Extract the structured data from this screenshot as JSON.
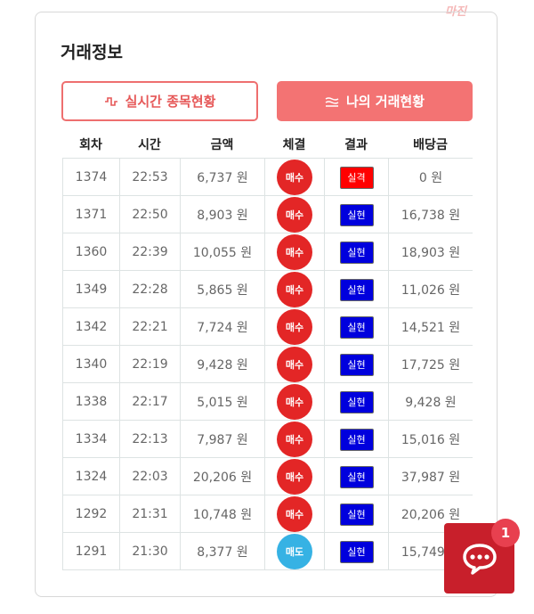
{
  "watermark": "마진",
  "card": {
    "title": "거래정보",
    "tabs": [
      "실시간 종목현황",
      "나의 거래현황"
    ],
    "table": {
      "headers": [
        "회차",
        "시간",
        "금액",
        "체결",
        "결과",
        "배당금"
      ],
      "rows": [
        [
          "1374",
          "22:53",
          "6,737 원",
          "매수",
          "실격",
          "0 원"
        ],
        [
          "1371",
          "22:50",
          "8,903 원",
          "매수",
          "실현",
          "16,738 원"
        ],
        [
          "1360",
          "22:39",
          "10,055 원",
          "매수",
          "실현",
          "18,903 원"
        ],
        [
          "1349",
          "22:28",
          "5,865 원",
          "매수",
          "실현",
          "11,026 원"
        ],
        [
          "1342",
          "22:21",
          "7,724 원",
          "매수",
          "실현",
          "14,521 원"
        ],
        [
          "1340",
          "22:19",
          "9,428 원",
          "매수",
          "실현",
          "17,725 원"
        ],
        [
          "1338",
          "22:17",
          "5,015 원",
          "매수",
          "실현",
          "9,428 원"
        ],
        [
          "1334",
          "22:13",
          "7,987 원",
          "매수",
          "실현",
          "15,016 원"
        ],
        [
          "1324",
          "22:03",
          "20,206 원",
          "매수",
          "실현",
          "37,987 원"
        ],
        [
          "1292",
          "21:31",
          "10,748 원",
          "매수",
          "실현",
          "20,206 원"
        ],
        [
          "1291",
          "21:30",
          "8,377 원",
          "매도",
          "실현",
          "15,749 원"
        ]
      ]
    }
  },
  "styles": {
    "trade_colors": {
      "매수": "#e32626",
      "매도": "#36b2e4"
    },
    "result_colors": {
      "실격": "#ff0000",
      "실현": "#0000dd"
    }
  },
  "chat": {
    "badge": "1"
  }
}
